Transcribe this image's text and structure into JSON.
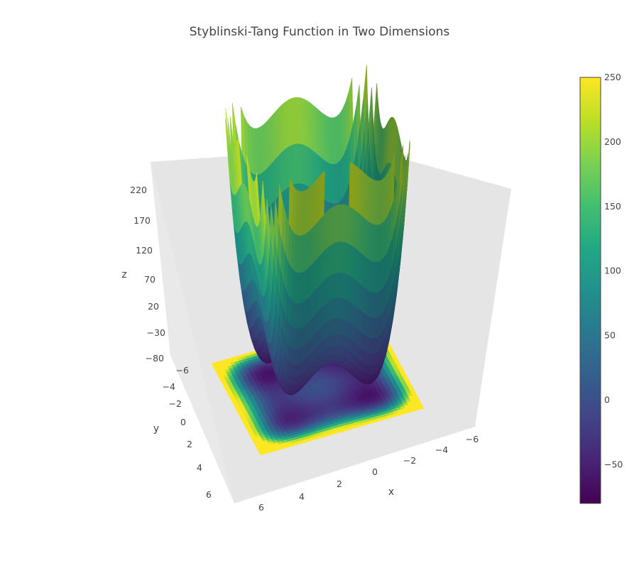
{
  "chart_data": {
    "type": "surface",
    "title": "Styblinski-Tang Function in Two Dimensions",
    "function": "z = 0.5*((x^4 - 16x^2 + 5x) + (y^4 - 16y^2 + 5y))",
    "x_range": [
      -6,
      6
    ],
    "y_range": [
      -6,
      6
    ],
    "xlabel": "x",
    "ylabel": "y",
    "zlabel": "z",
    "x_ticks": [
      "−6",
      "−4",
      "−2",
      "0",
      "2",
      "4",
      "6"
    ],
    "y_ticks": [
      "−6",
      "−4",
      "−2",
      "0",
      "2",
      "4",
      "6"
    ],
    "z_ticks": [
      "−80",
      "−30",
      "20",
      "70",
      "120",
      "170",
      "220"
    ],
    "z_range": [
      -80,
      250
    ],
    "colorscale": "Viridis",
    "colorbar": {
      "range": [
        -80,
        250
      ],
      "ticks": [
        "−50",
        "0",
        "50",
        "100",
        "150",
        "200",
        "250"
      ]
    },
    "contour_projection_on_floor": true,
    "colors": {
      "scene_background": "#e5e5e5",
      "text": "#444444"
    }
  }
}
